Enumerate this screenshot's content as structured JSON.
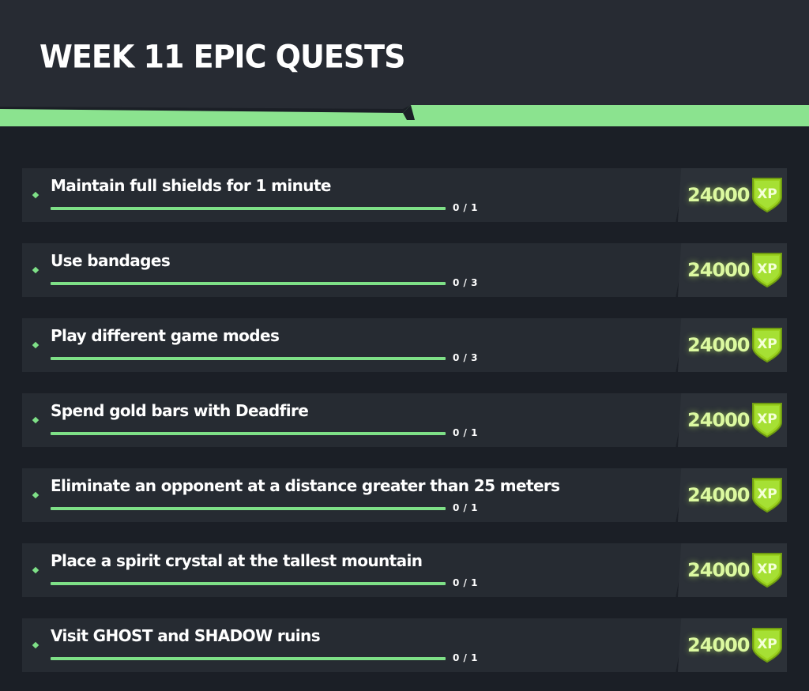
{
  "header": {
    "title": "WEEK 11 EPIC QUESTS",
    "accent_color": "#8be38f",
    "background_color": "#1b1f26"
  },
  "quests": [
    {
      "text": "Maintain full shields for 1 minute",
      "progress": "0 / 1",
      "done": 0,
      "total": 1,
      "xp": "24000",
      "badge_label": "XP"
    },
    {
      "text": "Use bandages",
      "progress": "0 / 3",
      "done": 0,
      "total": 3,
      "xp": "24000",
      "badge_label": "XP"
    },
    {
      "text": "Play different game modes",
      "progress": "0 / 3",
      "done": 0,
      "total": 3,
      "xp": "24000",
      "badge_label": "XP"
    },
    {
      "text": "Spend gold bars with Deadfire",
      "progress": "0 / 1",
      "done": 0,
      "total": 1,
      "xp": "24000",
      "badge_label": "XP"
    },
    {
      "text": "Eliminate an opponent at a distance greater than 25 meters",
      "progress": "0 / 1",
      "done": 0,
      "total": 1,
      "xp": "24000",
      "badge_label": "XP"
    },
    {
      "text": "Place a spirit crystal at the tallest mountain",
      "progress": "0 / 1",
      "done": 0,
      "total": 1,
      "xp": "24000",
      "badge_label": "XP"
    },
    {
      "text": "Visit GHOST and SHADOW ruins",
      "progress": "0 / 1",
      "done": 0,
      "total": 1,
      "xp": "24000",
      "badge_label": "XP"
    }
  ],
  "icons": {
    "bullet": "diamond-icon",
    "reward": "xp-shield-icon"
  }
}
